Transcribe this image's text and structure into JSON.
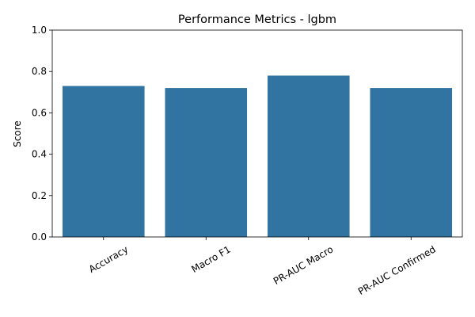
{
  "chart_data": {
    "type": "bar",
    "title": "Performance Metrics - lgbm",
    "xlabel": "",
    "ylabel": "Score",
    "categories": [
      "Accuracy",
      "Macro F1",
      "PR-AUC Macro",
      "PR-AUC Confirmed"
    ],
    "values": [
      0.73,
      0.72,
      0.78,
      0.72
    ],
    "ylim": [
      0,
      1.0
    ],
    "yticks": [
      "0.0",
      "0.2",
      "0.4",
      "0.6",
      "0.8",
      "1.0"
    ],
    "grid": false,
    "bar_color": "#3274a1",
    "x_tick_rotation": "30 degrees"
  }
}
